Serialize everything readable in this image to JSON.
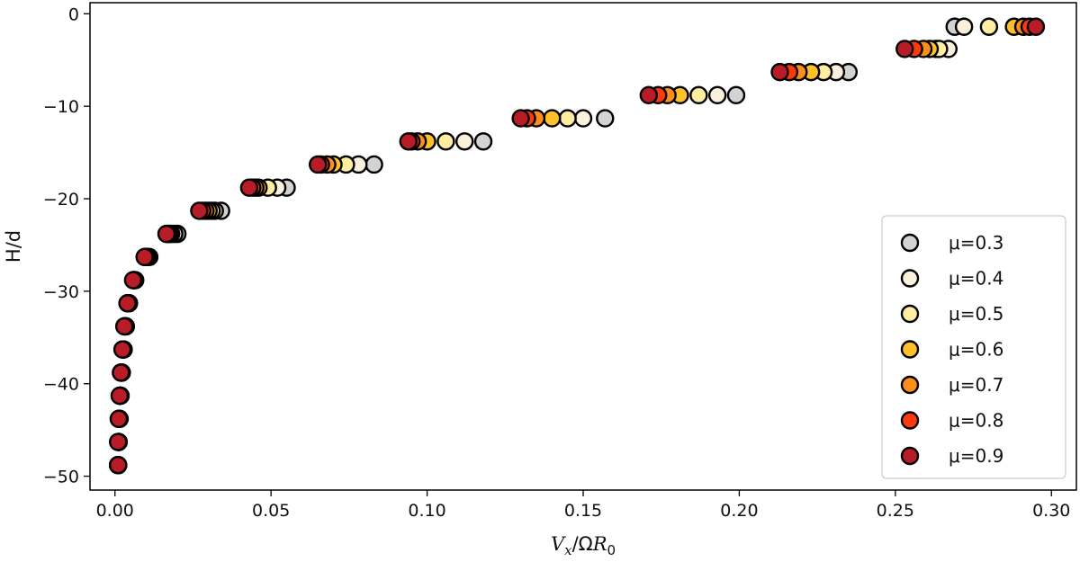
{
  "chart_data": {
    "type": "scatter",
    "title": "",
    "xlabel": "V_x/ΩR_0",
    "xlabel_parts": {
      "v": "V",
      "vsub": "x",
      "sep": "/Ω",
      "r": "R",
      "rsub": "0"
    },
    "ylabel": "H/d",
    "xlim": [
      -0.008,
      0.308
    ],
    "ylim": [
      -51.5,
      1.2
    ],
    "xticks": [
      0.0,
      0.05,
      0.1,
      0.15,
      0.2,
      0.25,
      0.3
    ],
    "xtick_labels": [
      "0.00",
      "0.05",
      "0.10",
      "0.15",
      "0.20",
      "0.25",
      "0.30"
    ],
    "yticks": [
      0,
      -10,
      -20,
      -30,
      -40,
      -50
    ],
    "ytick_labels": [
      "0",
      "−10",
      "−20",
      "−30",
      "−40",
      "−50"
    ],
    "grid": false,
    "legend_position": "lower-right",
    "depths": [
      -1.4,
      -3.8,
      -6.3,
      -8.8,
      -11.3,
      -13.8,
      -16.3,
      -18.8,
      -21.3,
      -23.8,
      -26.3,
      -28.8,
      -31.3,
      -33.8,
      -36.3,
      -38.8,
      -41.3,
      -43.8,
      -46.3,
      -48.8
    ],
    "series": [
      {
        "name": "μ=0.3",
        "mu": "0.3",
        "color": "#d3d3d3",
        "x": [
          0.269,
          0.263,
          0.235,
          0.199,
          0.157,
          0.118,
          0.083,
          0.055,
          0.034,
          0.02,
          0.011,
          0.0065,
          0.0045,
          0.0035,
          0.0028,
          0.0022,
          0.0018,
          0.0015,
          0.0012,
          0.001
        ]
      },
      {
        "name": "μ=0.4",
        "mu": "0.4",
        "color": "#faf0dc",
        "x": [
          0.272,
          0.267,
          0.231,
          0.193,
          0.15,
          0.112,
          0.078,
          0.052,
          0.032,
          0.019,
          0.0105,
          0.0063,
          0.0044,
          0.0034,
          0.0027,
          0.0021,
          0.0017,
          0.0014,
          0.0011,
          0.001
        ]
      },
      {
        "name": "μ=0.5",
        "mu": "0.5",
        "color": "#ffeda0",
        "x": [
          0.28,
          0.264,
          0.227,
          0.187,
          0.145,
          0.106,
          0.074,
          0.049,
          0.031,
          0.018,
          0.0102,
          0.0062,
          0.0043,
          0.0033,
          0.0026,
          0.0021,
          0.0017,
          0.0014,
          0.0011,
          0.001
        ]
      },
      {
        "name": "μ=0.6",
        "mu": "0.6",
        "color": "#fec02b",
        "x": [
          0.288,
          0.261,
          0.223,
          0.181,
          0.14,
          0.1,
          0.07,
          0.046,
          0.03,
          0.0175,
          0.01,
          0.006,
          0.0042,
          0.0032,
          0.0026,
          0.002,
          0.0016,
          0.0013,
          0.0011,
          0.001
        ]
      },
      {
        "name": "μ=0.7",
        "mu": "0.7",
        "color": "#fd8d1c",
        "x": [
          0.291,
          0.259,
          0.219,
          0.177,
          0.135,
          0.097,
          0.068,
          0.045,
          0.029,
          0.017,
          0.0098,
          0.006,
          0.0042,
          0.0032,
          0.0025,
          0.002,
          0.0016,
          0.0013,
          0.0011,
          0.001
        ]
      },
      {
        "name": "μ=0.8",
        "mu": "0.8",
        "color": "#fc3a0c",
        "x": [
          0.293,
          0.256,
          0.216,
          0.174,
          0.132,
          0.095,
          0.066,
          0.044,
          0.028,
          0.0168,
          0.0096,
          0.0059,
          0.0041,
          0.0031,
          0.0025,
          0.002,
          0.0016,
          0.0013,
          0.0011,
          0.001
        ]
      },
      {
        "name": "μ=0.9",
        "mu": "0.9",
        "color": "#b81c26",
        "x": [
          0.295,
          0.253,
          0.213,
          0.171,
          0.13,
          0.094,
          0.065,
          0.043,
          0.027,
          0.0165,
          0.0095,
          0.0058,
          0.004,
          0.003,
          0.0024,
          0.0019,
          0.0015,
          0.0012,
          0.001,
          0.001
        ]
      }
    ]
  }
}
